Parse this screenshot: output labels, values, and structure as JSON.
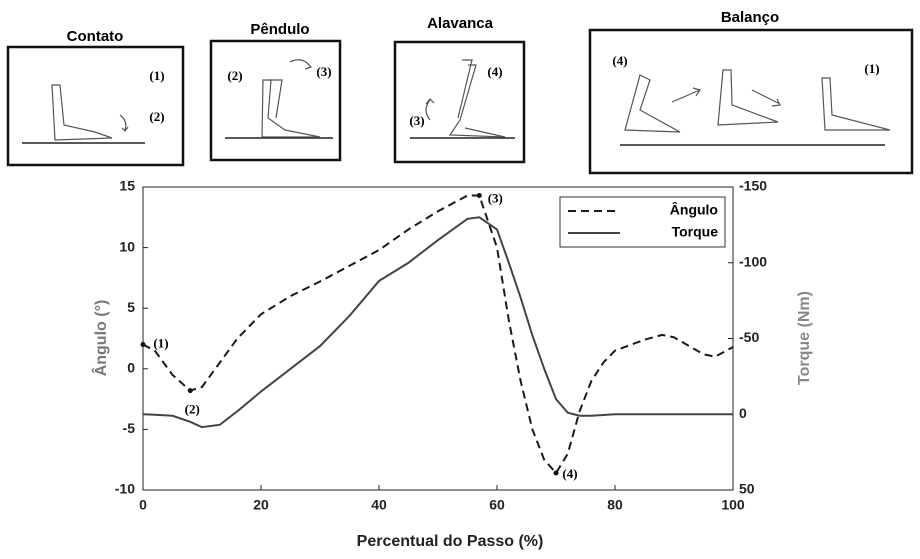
{
  "phases": [
    {
      "title": "Contato",
      "labels": [
        "(1)",
        "(2)"
      ]
    },
    {
      "title": "Pêndulo",
      "labels": [
        "(2)",
        "(3)"
      ]
    },
    {
      "title": "Alavanca",
      "labels": [
        "(3)",
        "(4)"
      ]
    },
    {
      "title": "Balanço",
      "labels": [
        "(4)",
        "(1)"
      ]
    }
  ],
  "chart_data": {
    "type": "line",
    "xlabel": "Percentual do Passo (%)",
    "ylabel": "Ângulo (°)",
    "y2label": "Torque (Nm)",
    "x": [
      0,
      2,
      5,
      8,
      10,
      13,
      16,
      20,
      25,
      30,
      35,
      40,
      45,
      50,
      55,
      57,
      60,
      62,
      64,
      66,
      68,
      70,
      72,
      74,
      76,
      78,
      80,
      85,
      88,
      90,
      95,
      97,
      100
    ],
    "series": [
      {
        "name": "Ângulo",
        "color": "#1a1a1a",
        "dash": true,
        "axis": "y",
        "values": [
          2,
          1.5,
          -0.5,
          -1.8,
          -1.5,
          0.5,
          2.5,
          4.5,
          6,
          7.2,
          8.5,
          9.8,
          11.5,
          13,
          14.3,
          14.3,
          10,
          4,
          -1,
          -5,
          -7.5,
          -8.6,
          -7,
          -3.5,
          -1,
          0.5,
          1.5,
          2.4,
          2.8,
          2.6,
          1.2,
          1.0,
          1.8
        ]
      },
      {
        "name": "Torque",
        "color": "#444444",
        "dash": false,
        "axis": "y2",
        "values": [
          0,
          0.3,
          1,
          5,
          8.5,
          7,
          -2,
          -15,
          -30,
          -45,
          -65,
          -88,
          -100,
          -115,
          -129,
          -130,
          -122,
          -100,
          -77,
          -52,
          -30,
          -10,
          -1,
          1,
          1,
          0.5,
          0,
          0,
          0,
          0,
          0,
          0,
          0
        ]
      }
    ],
    "annotations": [
      "(1)",
      "(2)",
      "(3)",
      "(4)"
    ],
    "xlim": [
      0,
      100
    ],
    "xticks": [
      0,
      20,
      40,
      60,
      80,
      100
    ],
    "ylim": [
      -10,
      15
    ],
    "yticks": [
      -10,
      -5,
      0,
      5,
      10,
      15
    ],
    "y2lim": [
      50,
      -150
    ],
    "y2ticks": [
      50,
      0,
      -50,
      -100,
      -150
    ],
    "legend": "upper right",
    "grid": false
  }
}
